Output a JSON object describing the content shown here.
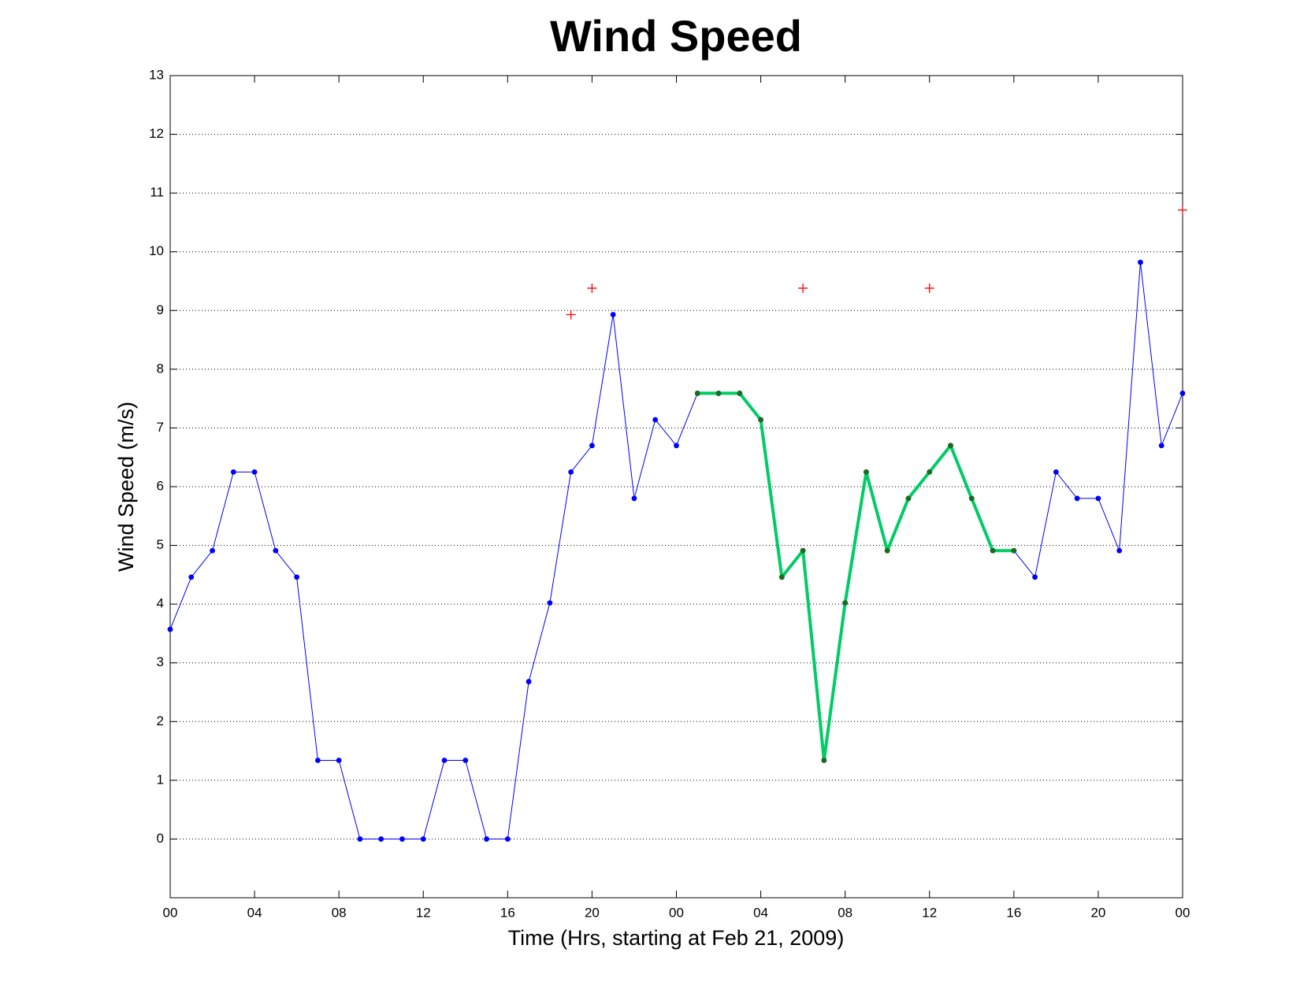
{
  "chart_data": {
    "type": "line",
    "title": "Wind Speed",
    "xlabel": "Time (Hrs, starting at Feb 21, 2009)",
    "ylabel": "Wind Speed (m/s)",
    "xlim": [
      0,
      48
    ],
    "ylim": [
      -1,
      13
    ],
    "xticks": [
      {
        "value": 0,
        "label": "00"
      },
      {
        "value": 4,
        "label": "04"
      },
      {
        "value": 8,
        "label": "08"
      },
      {
        "value": 12,
        "label": "12"
      },
      {
        "value": 16,
        "label": "16"
      },
      {
        "value": 20,
        "label": "20"
      },
      {
        "value": 24,
        "label": "00"
      },
      {
        "value": 28,
        "label": "04"
      },
      {
        "value": 32,
        "label": "08"
      },
      {
        "value": 36,
        "label": "12"
      },
      {
        "value": 40,
        "label": "16"
      },
      {
        "value": 44,
        "label": "20"
      },
      {
        "value": 48,
        "label": "00"
      }
    ],
    "yticks": [
      0,
      1,
      2,
      3,
      4,
      5,
      6,
      7,
      8,
      9,
      10,
      11,
      12,
      13
    ],
    "grid": true,
    "series": [
      {
        "color": "#0000ff",
        "line_width": 1,
        "marker": "dot",
        "marker_color": "#0000ff",
        "x": [
          0,
          1,
          2,
          3,
          4,
          5,
          6,
          7,
          8,
          9,
          10,
          11,
          12,
          13,
          14,
          15,
          16,
          17,
          18,
          19,
          20,
          21,
          22,
          23,
          24,
          25,
          26,
          27,
          28,
          29,
          30,
          31,
          32,
          33,
          34,
          35,
          36,
          37,
          38,
          39,
          40,
          41,
          42,
          43,
          44,
          45,
          46,
          47,
          48
        ],
        "values": [
          3.57,
          4.46,
          4.91,
          6.25,
          6.25,
          4.91,
          4.46,
          1.34,
          1.34,
          0,
          0,
          0,
          0,
          1.34,
          1.34,
          0,
          0,
          2.68,
          4.02,
          6.25,
          6.7,
          8.93,
          5.8,
          7.14,
          6.7,
          7.59,
          7.59,
          7.59,
          7.14,
          4.46,
          4.91,
          1.34,
          4.02,
          6.25,
          4.91,
          5.8,
          6.25,
          6.7,
          5.8,
          4.91,
          4.91,
          4.46,
          6.25,
          5.8,
          5.8,
          4.91,
          9.82,
          6.7,
          7.59
        ]
      },
      {
        "color": "#00cc66",
        "line_width": 4,
        "marker": "dot",
        "marker_color": "#1a6b1a",
        "x": [
          25,
          26,
          27,
          28,
          29,
          30,
          31,
          32,
          33,
          34,
          35,
          36,
          37,
          38,
          39,
          40
        ],
        "values": [
          7.59,
          7.59,
          7.59,
          7.14,
          4.46,
          4.91,
          1.34,
          4.02,
          6.25,
          4.91,
          5.8,
          6.25,
          6.7,
          5.8,
          4.91,
          4.91
        ]
      },
      {
        "color": "#ff0000",
        "line_width": 0,
        "marker": "plus",
        "marker_color": "#ff0000",
        "x": [
          19,
          20,
          30,
          36,
          48
        ],
        "values": [
          8.93,
          9.38,
          9.38,
          9.38,
          10.71
        ]
      }
    ]
  }
}
